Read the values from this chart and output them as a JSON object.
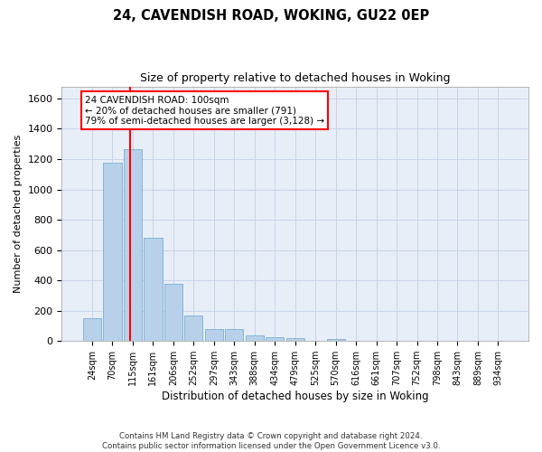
{
  "title_line1": "24, CAVENDISH ROAD, WOKING, GU22 0EP",
  "title_line2": "Size of property relative to detached houses in Woking",
  "xlabel": "Distribution of detached houses by size in Woking",
  "ylabel": "Number of detached properties",
  "categories": [
    "24sqm",
    "70sqm",
    "115sqm",
    "161sqm",
    "206sqm",
    "252sqm",
    "297sqm",
    "343sqm",
    "388sqm",
    "434sqm",
    "479sqm",
    "525sqm",
    "570sqm",
    "616sqm",
    "661sqm",
    "707sqm",
    "752sqm",
    "798sqm",
    "843sqm",
    "889sqm",
    "934sqm"
  ],
  "values": [
    148,
    1175,
    1265,
    680,
    380,
    167,
    80,
    80,
    37,
    28,
    20,
    0,
    13,
    0,
    0,
    0,
    0,
    0,
    0,
    0,
    0
  ],
  "bar_color": "#b8d0ea",
  "bar_edge_color": "#7aafd4",
  "ylim": [
    0,
    1680
  ],
  "yticks": [
    0,
    200,
    400,
    600,
    800,
    1000,
    1200,
    1400,
    1600
  ],
  "annotation_text_line1": "24 CAVENDISH ROAD: 100sqm",
  "annotation_text_line2": "← 20% of detached houses are smaller (791)",
  "annotation_text_line3": "79% of semi-detached houses are larger (3,128) →",
  "grid_color": "#c8d4e8",
  "background_color": "#e8eef8",
  "footer_line1": "Contains HM Land Registry data © Crown copyright and database right 2024.",
  "footer_line2": "Contains public sector information licensed under the Open Government Licence v3.0."
}
